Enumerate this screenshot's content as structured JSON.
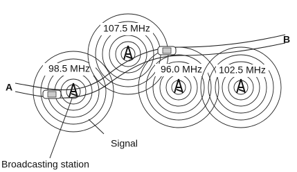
{
  "stations": [
    {
      "label": "98.5 MHz"
    },
    {
      "label": "107.5 MHz"
    },
    {
      "label": "96.0 MHz"
    },
    {
      "label": "102.5 MHz"
    }
  ],
  "points": {
    "start": "A",
    "end": "B"
  },
  "callouts": {
    "signal": "Signal",
    "station": "Broadcasting station"
  }
}
